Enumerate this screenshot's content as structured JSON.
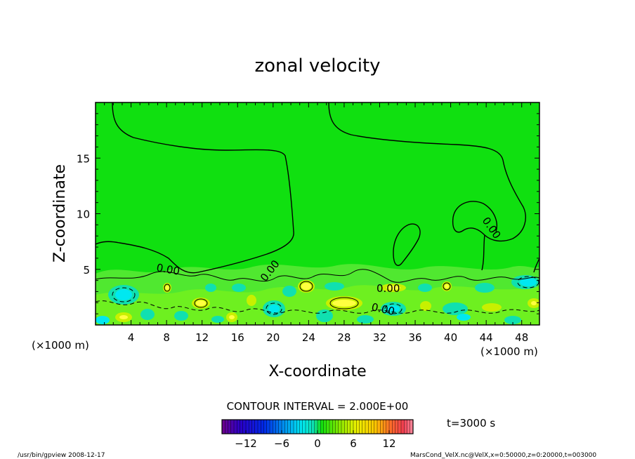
{
  "chart_data": {
    "type": "heatmap",
    "title": "zonal velocity",
    "xlabel": "X-coordinate",
    "ylabel": "Z-coordinate",
    "x_unit": "(×1000 m)",
    "z_unit": "(×1000 m)",
    "xlim": [
      0,
      50
    ],
    "ylim": [
      0,
      20
    ],
    "x_ticks": [
      4,
      8,
      12,
      16,
      20,
      24,
      28,
      32,
      36,
      40,
      44,
      48
    ],
    "y_ticks": [
      5,
      10,
      15
    ],
    "contour_interval_text": "CONTOUR INTERVAL = 2.000E+00",
    "contour_labels": [
      "0.00",
      "0.00",
      "0.00",
      "0.00",
      "0.00"
    ],
    "time_label": "t=3000 s",
    "colorbar": {
      "range": [
        -16,
        16
      ],
      "ticks": [
        -12,
        -6,
        0,
        6,
        12
      ],
      "tick_labels": [
        "−12",
        "−6",
        "0",
        "6",
        "12"
      ]
    },
    "background_value": 0,
    "colors": {
      "field_zero": "#10e010",
      "field_plus": "#c8f000",
      "field_strong_plus": "#ffff40",
      "field_minus": "#10e0b0",
      "field_strong_minus": "#00e8f0"
    }
  },
  "footer": {
    "left": "/usr/bin/gpview   2008-12-17",
    "right": "MarsCond_VelX.nc@VelX,x=0:50000,z=0:20000,t=003000"
  }
}
